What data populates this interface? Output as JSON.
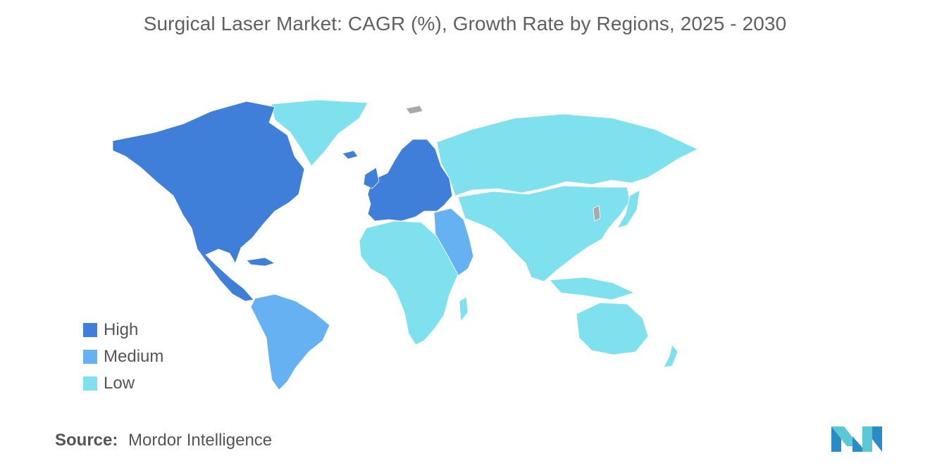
{
  "title": "Surgical Laser Market: CAGR (%), Growth Rate by Regions, 2025 - 2030",
  "colors": {
    "high": "#3f7fd9",
    "medium": "#66b1f2",
    "low": "#7fe0ee",
    "no_data": "#a9a9a9"
  },
  "legend": {
    "items": [
      {
        "label": "High",
        "level": "high"
      },
      {
        "label": "Medium",
        "level": "medium"
      },
      {
        "label": "Low",
        "level": "low"
      }
    ]
  },
  "regions": {
    "north_america": "high",
    "europe": "high",
    "latin_america": "medium",
    "middle_east": "medium",
    "africa": "low",
    "asia_pacific": "low",
    "russia": "low",
    "greenland": "low",
    "australia": "low"
  },
  "source": {
    "label": "Source:",
    "value": "Mordor Intelligence"
  }
}
